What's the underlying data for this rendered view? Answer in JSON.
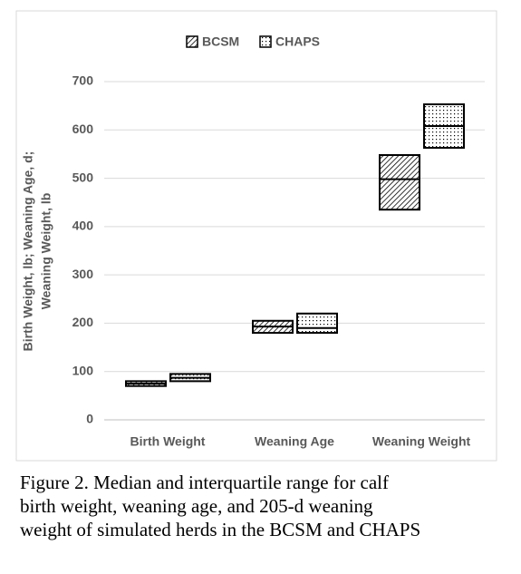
{
  "chart_data": {
    "type": "floating-box",
    "categories": [
      "Birth Weight",
      "Weaning Age",
      "Weaning Weight"
    ],
    "series": [
      {
        "name": "BCSM",
        "color": "#000000",
        "pattern": "diagonal",
        "q1": [
          70,
          180,
          435
        ],
        "median": [
          75,
          193,
          498
        ],
        "q3": [
          80,
          205,
          548
        ]
      },
      {
        "name": "CHAPS",
        "color": "#000000",
        "pattern": "dots",
        "q1": [
          80,
          180,
          563
        ],
        "median": [
          87,
          190,
          608
        ],
        "q3": [
          95,
          220,
          653
        ]
      }
    ],
    "ylabel": [
      "Birth Weight, lb; Weaning Age, d;",
      "Weaning Weight, lb"
    ],
    "ylim": [
      0,
      700
    ],
    "yticks": [
      0,
      100,
      200,
      300,
      400,
      500,
      600,
      700
    ],
    "grid": true,
    "legend": "top",
    "caption": [
      "Figure 2. Median and interquartile range for calf",
      "birth weight, weaning age, and 205-d weaning",
      "weight of simulated herds in the BCSM and CHAPS"
    ]
  }
}
